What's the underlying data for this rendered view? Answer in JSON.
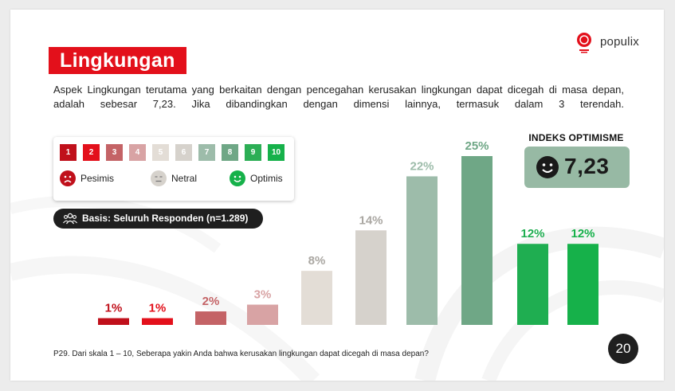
{
  "title": "Lingkungan",
  "logo": {
    "wordmark": "populix",
    "seal_icon": "sustainability-seal-icon"
  },
  "description": "Aspek Lingkungan terutama yang berkaitan dengan pencegahan kerusakan lingkungan dapat dicegah di masa depan, adalah sebesar 7,23. Jika dibandingkan dengan dimensi lainnya, termasuk dalam 3 terendah.",
  "legend": {
    "scale": [
      {
        "label": "1",
        "color": "#c0101b"
      },
      {
        "label": "2",
        "color": "#e3101b"
      },
      {
        "label": "3",
        "color": "#c46366"
      },
      {
        "label": "4",
        "color": "#d8a3a4"
      },
      {
        "label": "5",
        "color": "#e3ddd6"
      },
      {
        "label": "6",
        "color": "#d6d2cc"
      },
      {
        "label": "7",
        "color": "#9dbcaa"
      },
      {
        "label": "8",
        "color": "#6fa786"
      },
      {
        "label": "9",
        "color": "#2cae55"
      },
      {
        "label": "10",
        "color": "#16b14a"
      }
    ],
    "pessimist": {
      "label": "Pesimis",
      "icon": "sad-face-icon",
      "color": "#c0101b"
    },
    "neutral": {
      "label": "Netral",
      "icon": "neutral-face-icon",
      "color": "#d6d2cc"
    },
    "optimist": {
      "label": "Optimis",
      "icon": "smile-face-icon",
      "color": "#16b14a"
    }
  },
  "basis": {
    "icon": "people-group-icon",
    "label": "Basis: Seluruh Responden (n=1.289)"
  },
  "index": {
    "title": "INDEKS OPTIMISME",
    "value": "7,23",
    "icon": "smile-face-icon",
    "color": "#97b9a4"
  },
  "chart_data": {
    "type": "bar",
    "categories": [
      "1",
      "2",
      "3",
      "4",
      "5",
      "6",
      "7",
      "8",
      "9",
      "10"
    ],
    "values": [
      1,
      1,
      2,
      3,
      8,
      14,
      22,
      25,
      12,
      12
    ],
    "data_labels": [
      "1%",
      "1%",
      "2%",
      "3%",
      "8%",
      "14%",
      "22%",
      "25%",
      "12%",
      "12%"
    ],
    "colors": [
      "#c0101b",
      "#e3101b",
      "#c46366",
      "#d8a3a4",
      "#e3ddd6",
      "#d6d2cc",
      "#9dbcaa",
      "#6fa786",
      "#1fae51",
      "#16b14a"
    ],
    "label_colors": [
      "#c0101b",
      "#e3101b",
      "#c46366",
      "#d8a3a4",
      "#aaa7a2",
      "#aaa7a2",
      "#9dbcaa",
      "#6fa786",
      "#1fae51",
      "#16b14a"
    ],
    "ylim": [
      0,
      25
    ],
    "grid": false
  },
  "footnote": "P29. Dari skala 1 – 10, Seberapa yakin Anda bahwa kerusakan lingkungan dapat dicegah di masa  depan?",
  "page_number": "20"
}
